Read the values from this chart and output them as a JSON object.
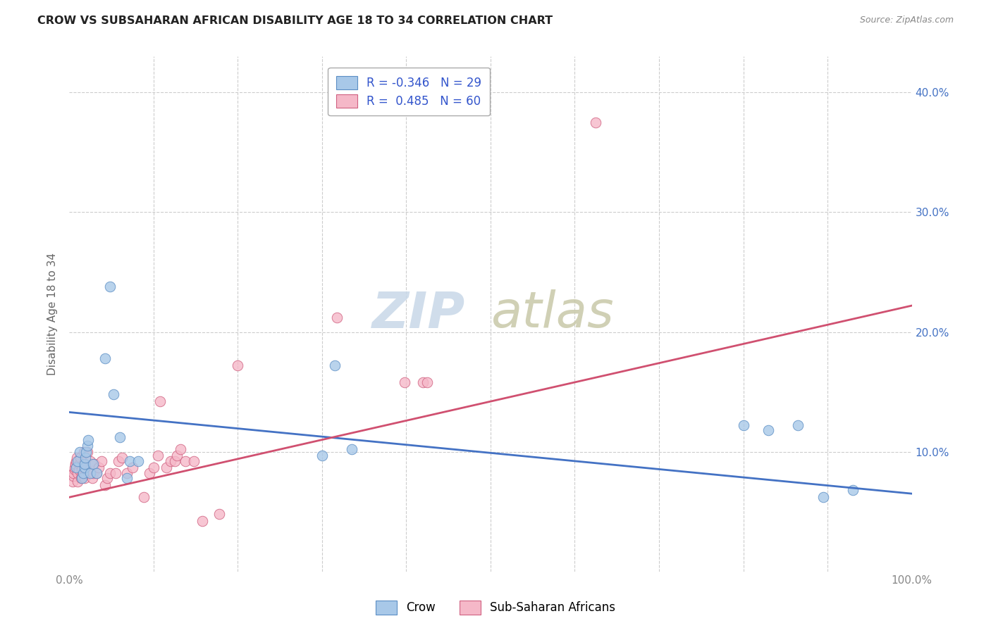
{
  "title": "CROW VS SUBSAHARAN AFRICAN DISABILITY AGE 18 TO 34 CORRELATION CHART",
  "source": "Source: ZipAtlas.com",
  "ylabel": "Disability Age 18 to 34",
  "xlim": [
    0.0,
    1.0
  ],
  "ylim": [
    0.0,
    0.43
  ],
  "ytick_values": [
    0.1,
    0.2,
    0.3,
    0.4
  ],
  "ytick_labels": [
    "10.0%",
    "20.0%",
    "30.0%",
    "40.0%"
  ],
  "xtick_values": [
    0.0,
    1.0
  ],
  "xtick_labels": [
    "0.0%",
    "100.0%"
  ],
  "background_color": "#ffffff",
  "grid_color": "#cccccc",
  "crow_color": "#a8c8e8",
  "crow_edge_color": "#5b8ec4",
  "crow_line_color": "#4472c4",
  "crow_R": "-0.346",
  "crow_N": "29",
  "crow_x": [
    0.008,
    0.01,
    0.012,
    0.015,
    0.016,
    0.018,
    0.018,
    0.019,
    0.02,
    0.021,
    0.022,
    0.025,
    0.028,
    0.032,
    0.042,
    0.048,
    0.052,
    0.06,
    0.068,
    0.072,
    0.082,
    0.3,
    0.315,
    0.335,
    0.8,
    0.83,
    0.865,
    0.895,
    0.93
  ],
  "crow_y": [
    0.087,
    0.092,
    0.1,
    0.078,
    0.082,
    0.087,
    0.09,
    0.095,
    0.1,
    0.105,
    0.11,
    0.082,
    0.09,
    0.082,
    0.178,
    0.238,
    0.148,
    0.112,
    0.078,
    0.092,
    0.092,
    0.097,
    0.172,
    0.102,
    0.122,
    0.118,
    0.122,
    0.062,
    0.068
  ],
  "ssa_color": "#f5b8c8",
  "ssa_edge_color": "#d06080",
  "ssa_line_color": "#d05070",
  "ssa_R": "0.485",
  "ssa_N": "60",
  "ssa_x": [
    0.004,
    0.005,
    0.005,
    0.006,
    0.006,
    0.007,
    0.007,
    0.008,
    0.009,
    0.01,
    0.01,
    0.011,
    0.012,
    0.013,
    0.014,
    0.015,
    0.015,
    0.016,
    0.017,
    0.018,
    0.019,
    0.02,
    0.021,
    0.022,
    0.024,
    0.025,
    0.027,
    0.028,
    0.03,
    0.032,
    0.035,
    0.038,
    0.042,
    0.045,
    0.048,
    0.055,
    0.058,
    0.062,
    0.068,
    0.075,
    0.088,
    0.095,
    0.1,
    0.105,
    0.108,
    0.115,
    0.12,
    0.125,
    0.128,
    0.132,
    0.138,
    0.148,
    0.158,
    0.178,
    0.2,
    0.318,
    0.398,
    0.42,
    0.425,
    0.625
  ],
  "ssa_y": [
    0.075,
    0.08,
    0.082,
    0.085,
    0.087,
    0.09,
    0.09,
    0.092,
    0.095,
    0.075,
    0.082,
    0.085,
    0.09,
    0.095,
    0.078,
    0.08,
    0.085,
    0.09,
    0.1,
    0.078,
    0.082,
    0.085,
    0.1,
    0.082,
    0.085,
    0.092,
    0.078,
    0.082,
    0.09,
    0.082,
    0.087,
    0.092,
    0.072,
    0.078,
    0.082,
    0.082,
    0.092,
    0.095,
    0.082,
    0.087,
    0.062,
    0.082,
    0.087,
    0.097,
    0.142,
    0.087,
    0.092,
    0.092,
    0.097,
    0.102,
    0.092,
    0.092,
    0.042,
    0.048,
    0.172,
    0.212,
    0.158,
    0.158,
    0.158,
    0.375
  ],
  "legend_crow_label": "Crow",
  "legend_ssa_label": "Sub-Saharan Africans",
  "crow_intercept": 0.133,
  "crow_slope": -0.068,
  "ssa_intercept": 0.062,
  "ssa_slope": 0.16,
  "watermark_zip": "ZIP",
  "watermark_atlas": "atlas",
  "zip_color": "#c8d8e8",
  "atlas_color": "#c8c8a8"
}
